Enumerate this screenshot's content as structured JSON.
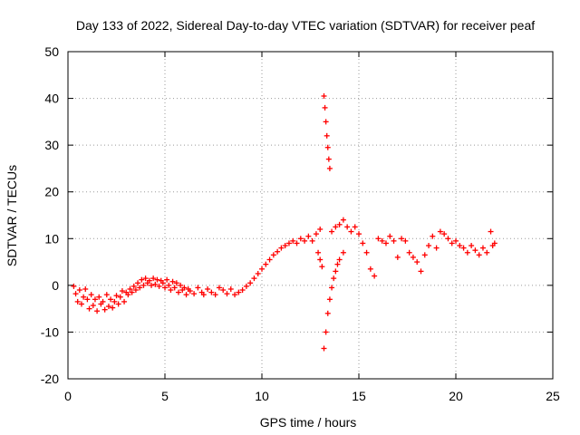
{
  "chart_data": {
    "type": "scatter",
    "title": "Day 133 of 2022, Sidereal Day-to-day VTEC variation (SDTVAR) for receiver peaf",
    "xlabel": "GPS time / hours",
    "ylabel": "SDTVAR / TECUs",
    "xlim": [
      0,
      25
    ],
    "ylim": [
      -20,
      50
    ],
    "xticks": [
      0,
      5,
      10,
      15,
      20,
      25
    ],
    "yticks": [
      -20,
      -10,
      0,
      10,
      20,
      30,
      40,
      50
    ],
    "xtick_labels": [
      "0",
      "5",
      "10",
      "15",
      "20",
      "25"
    ],
    "ytick_labels": [
      "-20",
      "-10",
      "0",
      "10",
      "20",
      "30",
      "40",
      "50"
    ],
    "grid": true,
    "marker": "+",
    "series": [
      {
        "name": "SDTVAR",
        "color": "#ff0000",
        "points": [
          [
            0.3,
            -0.2
          ],
          [
            0.4,
            -1.8
          ],
          [
            0.5,
            -3.5
          ],
          [
            0.6,
            -1.0
          ],
          [
            0.7,
            -4.0
          ],
          [
            0.8,
            -2.5
          ],
          [
            0.9,
            -0.8
          ],
          [
            1.0,
            -3.0
          ],
          [
            1.1,
            -5.0
          ],
          [
            1.2,
            -2.0
          ],
          [
            1.3,
            -4.3
          ],
          [
            1.4,
            -3.0
          ],
          [
            1.5,
            -5.5
          ],
          [
            1.6,
            -2.5
          ],
          [
            1.7,
            -4.0
          ],
          [
            1.8,
            -3.5
          ],
          [
            1.9,
            -5.2
          ],
          [
            2.0,
            -2.0
          ],
          [
            2.1,
            -4.5
          ],
          [
            2.2,
            -3.0
          ],
          [
            2.3,
            -4.8
          ],
          [
            2.4,
            -3.5
          ],
          [
            2.5,
            -2.2
          ],
          [
            2.6,
            -4.0
          ],
          [
            2.7,
            -2.5
          ],
          [
            2.8,
            -1.2
          ],
          [
            2.9,
            -3.5
          ],
          [
            3.0,
            -1.5
          ],
          [
            3.1,
            -2.0
          ],
          [
            3.2,
            -0.8
          ],
          [
            3.3,
            -1.5
          ],
          [
            3.4,
            -0.2
          ],
          [
            3.5,
            -1.0
          ],
          [
            3.6,
            0.5
          ],
          [
            3.7,
            -0.5
          ],
          [
            3.8,
            1.2
          ],
          [
            3.9,
            0.0
          ],
          [
            4.0,
            1.5
          ],
          [
            4.1,
            0.5
          ],
          [
            4.2,
            1.0
          ],
          [
            4.3,
            0.0
          ],
          [
            4.4,
            1.5
          ],
          [
            4.5,
            0.2
          ],
          [
            4.6,
            1.2
          ],
          [
            4.7,
            -0.2
          ],
          [
            4.8,
            1.0
          ],
          [
            4.9,
            0.5
          ],
          [
            5.0,
            -0.5
          ],
          [
            5.1,
            1.2
          ],
          [
            5.2,
            0.0
          ],
          [
            5.3,
            -1.0
          ],
          [
            5.4,
            0.8
          ],
          [
            5.5,
            -0.5
          ],
          [
            5.6,
            0.5
          ],
          [
            5.7,
            -1.5
          ],
          [
            5.8,
            0.0
          ],
          [
            5.9,
            -1.0
          ],
          [
            6.0,
            -0.5
          ],
          [
            6.1,
            -2.0
          ],
          [
            6.2,
            -0.8
          ],
          [
            6.3,
            -1.2
          ],
          [
            6.5,
            -1.8
          ],
          [
            6.7,
            -0.5
          ],
          [
            6.9,
            -1.5
          ],
          [
            7.0,
            -2.0
          ],
          [
            7.2,
            -0.8
          ],
          [
            7.4,
            -1.5
          ],
          [
            7.6,
            -2.0
          ],
          [
            7.8,
            -0.5
          ],
          [
            8.0,
            -1.0
          ],
          [
            8.2,
            -1.8
          ],
          [
            8.4,
            -0.8
          ],
          [
            8.6,
            -2.0
          ],
          [
            8.8,
            -1.5
          ],
          [
            9.0,
            -1.0
          ],
          [
            9.2,
            -0.2
          ],
          [
            9.4,
            0.5
          ],
          [
            9.6,
            1.5
          ],
          [
            9.8,
            2.5
          ],
          [
            10.0,
            3.5
          ],
          [
            10.2,
            4.5
          ],
          [
            10.4,
            5.5
          ],
          [
            10.6,
            6.5
          ],
          [
            10.8,
            7.2
          ],
          [
            11.0,
            8.0
          ],
          [
            11.2,
            8.5
          ],
          [
            11.4,
            9.0
          ],
          [
            11.6,
            9.5
          ],
          [
            11.8,
            9.0
          ],
          [
            12.0,
            10.0
          ],
          [
            12.2,
            9.5
          ],
          [
            12.4,
            10.5
          ],
          [
            12.6,
            9.5
          ],
          [
            12.8,
            11.0
          ],
          [
            13.0,
            12.0
          ],
          [
            12.9,
            7.0
          ],
          [
            13.0,
            5.5
          ],
          [
            13.1,
            4.0
          ],
          [
            13.2,
            -13.5
          ],
          [
            13.3,
            -10.0
          ],
          [
            13.4,
            -6.0
          ],
          [
            13.5,
            -3.0
          ],
          [
            13.6,
            -0.5
          ],
          [
            13.7,
            1.5
          ],
          [
            13.8,
            3.0
          ],
          [
            13.9,
            4.5
          ],
          [
            14.0,
            5.5
          ],
          [
            14.2,
            7.0
          ],
          [
            13.2,
            40.5
          ],
          [
            13.25,
            38.0
          ],
          [
            13.3,
            35.0
          ],
          [
            13.35,
            32.0
          ],
          [
            13.4,
            29.5
          ],
          [
            13.45,
            27.0
          ],
          [
            13.5,
            25.0
          ],
          [
            13.6,
            11.5
          ],
          [
            13.8,
            12.5
          ],
          [
            14.0,
            13.0
          ],
          [
            14.2,
            14.0
          ],
          [
            14.4,
            12.5
          ],
          [
            14.6,
            11.5
          ],
          [
            14.8,
            12.5
          ],
          [
            15.0,
            11.0
          ],
          [
            15.2,
            9.0
          ],
          [
            15.4,
            7.0
          ],
          [
            15.6,
            3.5
          ],
          [
            15.8,
            2.0
          ],
          [
            16.0,
            10.0
          ],
          [
            16.2,
            9.5
          ],
          [
            16.4,
            9.0
          ],
          [
            16.6,
            10.5
          ],
          [
            16.8,
            9.5
          ],
          [
            17.0,
            6.0
          ],
          [
            17.2,
            10.0
          ],
          [
            17.4,
            9.5
          ],
          [
            17.6,
            7.0
          ],
          [
            17.8,
            6.0
          ],
          [
            18.0,
            5.0
          ],
          [
            18.2,
            3.0
          ],
          [
            18.4,
            6.5
          ],
          [
            18.6,
            8.5
          ],
          [
            18.8,
            10.5
          ],
          [
            19.0,
            8.0
          ],
          [
            19.2,
            11.5
          ],
          [
            19.4,
            11.0
          ],
          [
            19.6,
            10.0
          ],
          [
            19.8,
            9.0
          ],
          [
            20.0,
            9.5
          ],
          [
            20.2,
            8.5
          ],
          [
            20.4,
            8.0
          ],
          [
            20.6,
            7.0
          ],
          [
            20.8,
            8.5
          ],
          [
            21.0,
            7.5
          ],
          [
            21.2,
            6.5
          ],
          [
            21.4,
            8.0
          ],
          [
            21.6,
            7.0
          ],
          [
            21.8,
            11.5
          ],
          [
            21.9,
            8.5
          ],
          [
            22.0,
            9.0
          ]
        ]
      }
    ]
  }
}
